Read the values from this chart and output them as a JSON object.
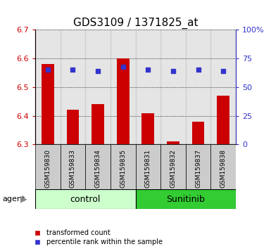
{
  "title": "GDS3109 / 1371825_at",
  "samples": [
    "GSM159830",
    "GSM159833",
    "GSM159834",
    "GSM159835",
    "GSM159831",
    "GSM159832",
    "GSM159837",
    "GSM159838"
  ],
  "transformed_count": [
    6.58,
    6.42,
    6.44,
    6.6,
    6.41,
    6.31,
    6.38,
    6.47
  ],
  "percentile_rank": [
    65,
    65,
    64,
    68,
    65,
    64,
    65,
    64
  ],
  "ylim_left": [
    6.3,
    6.7
  ],
  "ylim_right": [
    0,
    100
  ],
  "yticks_left": [
    6.3,
    6.4,
    6.5,
    6.6,
    6.7
  ],
  "yticks_right": [
    0,
    25,
    50,
    75,
    100
  ],
  "ytick_right_labels": [
    "0",
    "25",
    "50",
    "75",
    "100%"
  ],
  "bar_color": "#cc0000",
  "dot_color": "#3333cc",
  "bar_bottom": 6.3,
  "control_color": "#ccffcc",
  "sunitinib_color": "#33cc33",
  "legend_red": "transformed count",
  "legend_blue": "percentile rank within the sample",
  "title_fontsize": 11,
  "axis_tick_fontsize": 8,
  "sample_fontsize": 6.5,
  "group_fontsize": 9,
  "legend_fontsize": 7,
  "axis_color_red": "#cc0000",
  "axis_color_blue": "#3333cc",
  "bar_width": 0.5,
  "column_bg_color": "#cccccc",
  "column_bg_alpha": 0.5
}
